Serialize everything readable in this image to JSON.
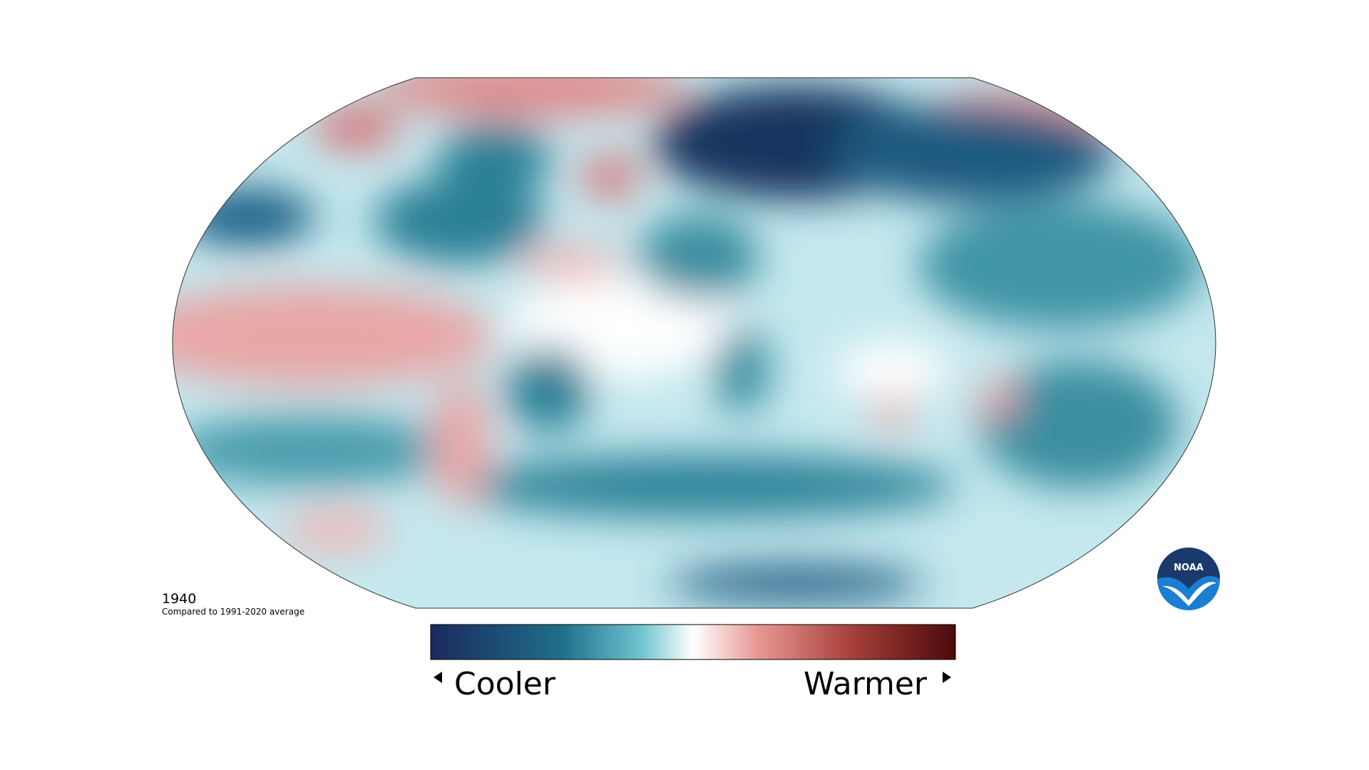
{
  "year": "1940",
  "subtitle": "Compared to 1991-2020 average",
  "legend": {
    "low": "Cooler",
    "high": "Warmer"
  },
  "logo": "NOAA"
}
